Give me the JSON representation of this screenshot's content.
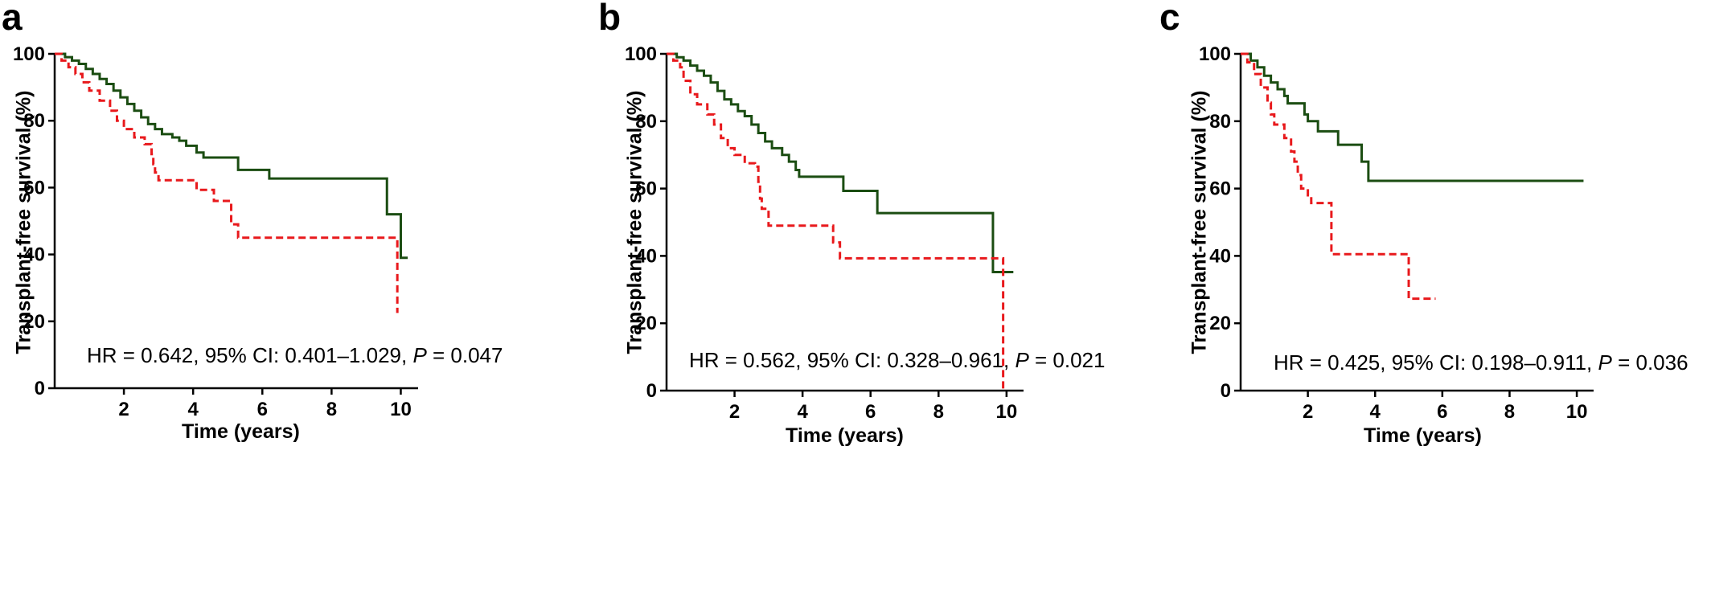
{
  "chart_data": [
    {
      "type": "line",
      "panel": "a",
      "ylabel": "Transplant-free survival (%)",
      "xlabel": "Time (years)",
      "xticks": [
        2,
        4,
        6,
        8,
        10
      ],
      "yticks": [
        0,
        20,
        40,
        60,
        80,
        100
      ],
      "xlim": [
        0,
        10.5
      ],
      "ylim": [
        0,
        100
      ],
      "annotation": {
        "prefix": "HR = 0.642, 95% CI: 0.401–1.029, ",
        "p_symbol": "P",
        "suffix": " = 0.047"
      },
      "series": [
        {
          "color": "#1b4d12",
          "style": "solid",
          "points": [
            [
              0,
              100
            ],
            [
              0.3,
              99
            ],
            [
              0.5,
              98
            ],
            [
              0.7,
              97
            ],
            [
              0.9,
              95.5
            ],
            [
              1.1,
              94
            ],
            [
              1.3,
              92.5
            ],
            [
              1.5,
              91
            ],
            [
              1.7,
              89
            ],
            [
              1.9,
              87
            ],
            [
              2.1,
              85
            ],
            [
              2.3,
              83
            ],
            [
              2.5,
              81
            ],
            [
              2.7,
              79
            ],
            [
              2.9,
              77.5
            ],
            [
              3.1,
              76
            ],
            [
              3.4,
              75
            ],
            [
              3.6,
              74
            ],
            [
              3.8,
              72.5
            ],
            [
              4.1,
              70.5
            ],
            [
              4.3,
              69
            ],
            [
              5.3,
              69
            ],
            [
              5.3,
              65.3
            ],
            [
              6.2,
              65.3
            ],
            [
              6.2,
              62.7
            ],
            [
              9.6,
              62.7
            ],
            [
              9.6,
              52
            ],
            [
              10,
              52
            ],
            [
              10,
              39
            ],
            [
              10.2,
              39
            ]
          ]
        },
        {
          "color": "#e8191c",
          "style": "dashed",
          "points": [
            [
              0,
              100
            ],
            [
              0.2,
              98
            ],
            [
              0.4,
              96
            ],
            [
              0.6,
              94
            ],
            [
              0.8,
              91.5
            ],
            [
              1.0,
              89
            ],
            [
              1.3,
              86
            ],
            [
              1.6,
              83
            ],
            [
              1.8,
              80
            ],
            [
              2.0,
              77.5
            ],
            [
              2.3,
              75
            ],
            [
              2.6,
              73
            ],
            [
              2.8,
              70
            ],
            [
              2.85,
              67
            ],
            [
              2.9,
              64.5
            ],
            [
              3.0,
              62.2
            ],
            [
              4.1,
              62.2
            ],
            [
              4.1,
              59.3
            ],
            [
              4.6,
              59.3
            ],
            [
              4.6,
              56
            ],
            [
              5.1,
              56
            ],
            [
              5.1,
              49
            ],
            [
              5.3,
              49
            ],
            [
              5.3,
              45
            ],
            [
              9.9,
              45
            ],
            [
              9.9,
              22.5
            ]
          ]
        }
      ]
    },
    {
      "type": "line",
      "panel": "b",
      "ylabel": "Transplant-free survival (%)",
      "xlabel": "Time (years)",
      "xticks": [
        2,
        4,
        6,
        8,
        10
      ],
      "yticks": [
        0,
        20,
        40,
        60,
        80,
        100
      ],
      "xlim": [
        0,
        10.5
      ],
      "ylim": [
        0,
        100
      ],
      "annotation": {
        "prefix": "HR = 0.562, 95% CI: 0.328–0.961, ",
        "p_symbol": "P",
        "suffix": " = 0.021"
      },
      "series": [
        {
          "color": "#1b4d12",
          "style": "solid",
          "points": [
            [
              0,
              100
            ],
            [
              0.3,
              99
            ],
            [
              0.5,
              98
            ],
            [
              0.7,
              96.5
            ],
            [
              0.9,
              95
            ],
            [
              1.1,
              93.5
            ],
            [
              1.3,
              91.5
            ],
            [
              1.5,
              89
            ],
            [
              1.7,
              86.5
            ],
            [
              1.9,
              85
            ],
            [
              2.1,
              83
            ],
            [
              2.3,
              81.5
            ],
            [
              2.5,
              79
            ],
            [
              2.7,
              76.5
            ],
            [
              2.9,
              74
            ],
            [
              3.1,
              72
            ],
            [
              3.4,
              70
            ],
            [
              3.6,
              68
            ],
            [
              3.8,
              65.5
            ],
            [
              3.9,
              63.5
            ],
            [
              5.2,
              63.5
            ],
            [
              5.2,
              59.3
            ],
            [
              6.2,
              59.3
            ],
            [
              6.2,
              52.7
            ],
            [
              9.6,
              52.7
            ],
            [
              9.6,
              35.2
            ],
            [
              10.2,
              35.2
            ]
          ]
        },
        {
          "color": "#e8191c",
          "style": "dashed",
          "points": [
            [
              0,
              100
            ],
            [
              0.2,
              98
            ],
            [
              0.4,
              96
            ],
            [
              0.5,
              92
            ],
            [
              0.7,
              88
            ],
            [
              0.9,
              85
            ],
            [
              1.2,
              82
            ],
            [
              1.4,
              79
            ],
            [
              1.6,
              75
            ],
            [
              1.8,
              72
            ],
            [
              2.0,
              70
            ],
            [
              2.3,
              67.5
            ],
            [
              2.6,
              66.5
            ],
            [
              2.7,
              62
            ],
            [
              2.75,
              57
            ],
            [
              2.8,
              54
            ],
            [
              3.0,
              49
            ],
            [
              4.9,
              49
            ],
            [
              4.9,
              44
            ],
            [
              5.1,
              44
            ],
            [
              5.1,
              39.3
            ],
            [
              9.9,
              39.3
            ],
            [
              9.9,
              0
            ]
          ]
        }
      ]
    },
    {
      "type": "line",
      "panel": "c",
      "ylabel": "Transplant-free survival (%)",
      "xlabel": "Time (years)",
      "xticks": [
        2,
        4,
        6,
        8,
        10
      ],
      "yticks": [
        0,
        20,
        40,
        60,
        80,
        100
      ],
      "xlim": [
        0,
        10.5
      ],
      "ylim": [
        0,
        100
      ],
      "annotation": {
        "prefix": "HR = 0.425, 95% CI: 0.198–0.911, ",
        "p_symbol": "P",
        "suffix": " = 0.036"
      },
      "series": [
        {
          "color": "#1b4d12",
          "style": "solid",
          "points": [
            [
              0,
              100
            ],
            [
              0.3,
              98
            ],
            [
              0.5,
              96
            ],
            [
              0.7,
              93.5
            ],
            [
              0.9,
              91.5
            ],
            [
              1.1,
              89.5
            ],
            [
              1.3,
              87.5
            ],
            [
              1.4,
              85.3
            ],
            [
              1.9,
              85.3
            ],
            [
              1.9,
              82
            ],
            [
              2.0,
              80
            ],
            [
              2.3,
              80
            ],
            [
              2.3,
              77
            ],
            [
              2.9,
              77
            ],
            [
              2.9,
              73
            ],
            [
              3.6,
              73
            ],
            [
              3.6,
              68
            ],
            [
              3.8,
              68
            ],
            [
              3.8,
              62.3
            ],
            [
              10.2,
              62.3
            ]
          ]
        },
        {
          "color": "#e8191c",
          "style": "dashed",
          "points": [
            [
              0,
              100
            ],
            [
              0.2,
              97.5
            ],
            [
              0.4,
              94
            ],
            [
              0.6,
              90
            ],
            [
              0.8,
              85.5
            ],
            [
              0.9,
              82
            ],
            [
              1.0,
              79
            ],
            [
              1.3,
              79
            ],
            [
              1.3,
              75
            ],
            [
              1.5,
              71
            ],
            [
              1.6,
              68
            ],
            [
              1.7,
              64
            ],
            [
              1.8,
              60
            ],
            [
              2.0,
              58
            ],
            [
              2.1,
              55.7
            ],
            [
              2.7,
              55.7
            ],
            [
              2.7,
              40.5
            ],
            [
              5.0,
              40.5
            ],
            [
              5.0,
              27.3
            ],
            [
              5.8,
              27.3
            ]
          ]
        }
      ]
    }
  ],
  "panel_letters": [
    "a",
    "b",
    "c"
  ]
}
